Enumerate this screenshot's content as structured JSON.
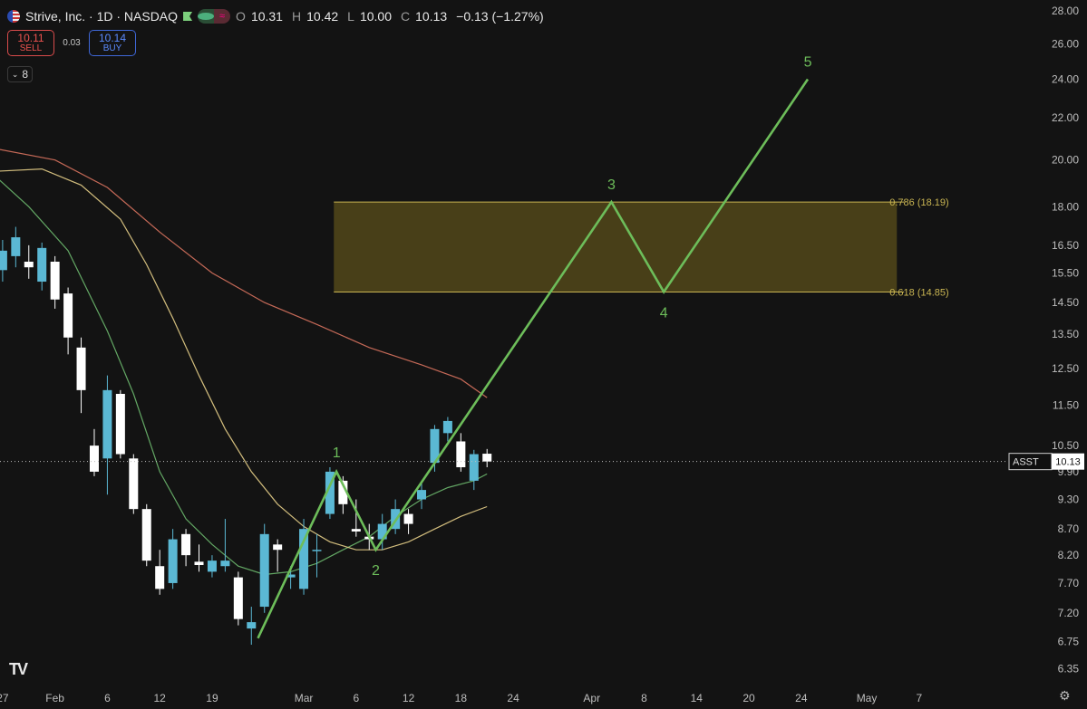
{
  "header": {
    "title": "Strive, Inc. · 1D · NASDAQ",
    "ohlc": [
      {
        "label": "O",
        "value": "10.31"
      },
      {
        "label": "H",
        "value": "10.42"
      },
      {
        "label": "L",
        "value": "10.00"
      },
      {
        "label": "C",
        "value": "10.13"
      }
    ],
    "change": "−0.13 (−1.27%)"
  },
  "trade": {
    "sell_price": "10.11",
    "sell_label": "SELL",
    "spread": "0.03",
    "buy_price": "10.14",
    "buy_label": "BUY"
  },
  "indicators_count": "8",
  "colors": {
    "up": "#5bb8d4",
    "down": "#ffffff",
    "wave": "#6dbd5a",
    "zone_fill": "#4b4118",
    "zone_border": "#c9b552",
    "ma_fast": "#6db86e",
    "ma_mid": "#e8d08a",
    "ma_slow": "#d9735f",
    "price_tag": "#ffffff"
  },
  "chart_data": {
    "type": "candlestick",
    "symbol": "ASST",
    "last_price": "10.13",
    "y_scale": "log",
    "ylim": [
      6.2,
      28.0
    ],
    "y_ticks": [
      "28.00",
      "26.00",
      "24.00",
      "22.00",
      "20.00",
      "18.00",
      "16.50",
      "15.50",
      "14.50",
      "13.50",
      "12.50",
      "11.50",
      "10.50",
      "9.90",
      "9.30",
      "8.70",
      "8.20",
      "7.70",
      "7.20",
      "6.75",
      "6.35"
    ],
    "x_ticks": [
      "27",
      "Feb",
      "6",
      "12",
      "19",
      "Mar",
      "6",
      "12",
      "18",
      "24",
      "Apr",
      "8",
      "14",
      "20",
      "24",
      "May",
      "7"
    ],
    "x_tick_slots": [
      0,
      4,
      8,
      12,
      16,
      23,
      27,
      31,
      35,
      39,
      45,
      49,
      53,
      57,
      61,
      66,
      70
    ],
    "xlim": [
      -0.2,
      76.8
    ],
    "candles": [
      {
        "x": 0,
        "o": 15.6,
        "h": 16.7,
        "l": 15.2,
        "c": 16.3
      },
      {
        "x": 1,
        "o": 16.1,
        "h": 17.2,
        "l": 15.7,
        "c": 16.8
      },
      {
        "x": 2,
        "o": 15.9,
        "h": 16.5,
        "l": 15.3,
        "c": 15.7
      },
      {
        "x": 3,
        "o": 15.2,
        "h": 16.6,
        "l": 14.9,
        "c": 16.4
      },
      {
        "x": 4,
        "o": 15.9,
        "h": 16.1,
        "l": 14.3,
        "c": 14.6
      },
      {
        "x": 5,
        "o": 14.8,
        "h": 15.0,
        "l": 12.9,
        "c": 13.4
      },
      {
        "x": 6,
        "o": 13.1,
        "h": 13.4,
        "l": 11.3,
        "c": 11.9
      },
      {
        "x": 7,
        "o": 10.5,
        "h": 10.9,
        "l": 9.8,
        "c": 9.9
      },
      {
        "x": 8,
        "o": 10.2,
        "h": 12.3,
        "l": 9.4,
        "c": 11.9
      },
      {
        "x": 9,
        "o": 11.8,
        "h": 11.9,
        "l": 10.2,
        "c": 10.3
      },
      {
        "x": 10,
        "o": 10.2,
        "h": 10.3,
        "l": 9.0,
        "c": 9.1
      },
      {
        "x": 11,
        "o": 9.1,
        "h": 9.2,
        "l": 8.0,
        "c": 8.1
      },
      {
        "x": 12,
        "o": 8.0,
        "h": 8.3,
        "l": 7.5,
        "c": 7.6
      },
      {
        "x": 13,
        "o": 7.7,
        "h": 8.7,
        "l": 7.6,
        "c": 8.5
      },
      {
        "x": 14,
        "o": 8.6,
        "h": 8.7,
        "l": 8.0,
        "c": 8.2
      },
      {
        "x": 15,
        "o": 8.08,
        "h": 8.4,
        "l": 7.9,
        "c": 8.02
      },
      {
        "x": 16,
        "o": 7.9,
        "h": 8.2,
        "l": 7.8,
        "c": 8.1
      },
      {
        "x": 17,
        "o": 8.0,
        "h": 8.9,
        "l": 7.9,
        "c": 8.1
      },
      {
        "x": 18,
        "o": 7.8,
        "h": 7.9,
        "l": 7.0,
        "c": 7.1
      },
      {
        "x": 19,
        "o": 6.95,
        "h": 7.3,
        "l": 6.7,
        "c": 7.05
      },
      {
        "x": 20,
        "o": 7.3,
        "h": 8.8,
        "l": 7.2,
        "c": 8.6
      },
      {
        "x": 21,
        "o": 8.4,
        "h": 8.5,
        "l": 7.9,
        "c": 8.3
      },
      {
        "x": 22,
        "o": 7.8,
        "h": 8.0,
        "l": 7.6,
        "c": 7.85
      },
      {
        "x": 23,
        "o": 7.6,
        "h": 8.9,
        "l": 7.5,
        "c": 8.7
      },
      {
        "x": 24,
        "o": 8.3,
        "h": 8.6,
        "l": 7.8,
        "c": 8.3
      },
      {
        "x": 25,
        "o": 9.0,
        "h": 10.0,
        "l": 8.9,
        "c": 9.9
      },
      {
        "x": 26,
        "o": 9.7,
        "h": 9.8,
        "l": 9.0,
        "c": 9.2
      },
      {
        "x": 27,
        "o": 8.7,
        "h": 9.3,
        "l": 8.55,
        "c": 8.65
      },
      {
        "x": 28,
        "o": 8.55,
        "h": 8.8,
        "l": 8.3,
        "c": 8.5
      },
      {
        "x": 29,
        "o": 8.5,
        "h": 9.0,
        "l": 8.3,
        "c": 8.8
      },
      {
        "x": 30,
        "o": 8.7,
        "h": 9.3,
        "l": 8.6,
        "c": 9.1
      },
      {
        "x": 31,
        "o": 9.0,
        "h": 9.1,
        "l": 8.6,
        "c": 8.8
      },
      {
        "x": 32,
        "o": 9.3,
        "h": 9.7,
        "l": 9.1,
        "c": 9.5
      },
      {
        "x": 33,
        "o": 10.1,
        "h": 11.0,
        "l": 9.9,
        "c": 10.9
      },
      {
        "x": 34,
        "o": 10.8,
        "h": 11.2,
        "l": 10.6,
        "c": 11.1
      },
      {
        "x": 35,
        "o": 10.6,
        "h": 10.8,
        "l": 9.9,
        "c": 10.0
      },
      {
        "x": 36,
        "o": 9.7,
        "h": 10.4,
        "l": 9.5,
        "c": 10.3
      },
      {
        "x": 37,
        "o": 10.31,
        "h": 10.42,
        "l": 10.0,
        "c": 10.13
      }
    ],
    "moving_averages": [
      {
        "name": "ma_fast",
        "points": [
          [
            -0.4,
            19.2
          ],
          [
            2,
            18.0
          ],
          [
            5,
            16.3
          ],
          [
            8,
            13.6
          ],
          [
            10,
            11.8
          ],
          [
            12,
            9.9
          ],
          [
            14,
            8.9
          ],
          [
            16,
            8.4
          ],
          [
            18,
            8.0
          ],
          [
            20,
            7.85
          ],
          [
            22,
            7.9
          ],
          [
            24,
            8.05
          ],
          [
            26,
            8.3
          ],
          [
            28,
            8.55
          ],
          [
            30,
            8.95
          ],
          [
            32,
            9.3
          ],
          [
            34,
            9.55
          ],
          [
            36,
            9.7
          ],
          [
            37,
            9.85
          ]
        ]
      },
      {
        "name": "ma_mid",
        "points": [
          [
            -0.4,
            19.5
          ],
          [
            3,
            19.6
          ],
          [
            6,
            18.9
          ],
          [
            9,
            17.5
          ],
          [
            11,
            15.8
          ],
          [
            13,
            14.0
          ],
          [
            15,
            12.3
          ],
          [
            17,
            10.9
          ],
          [
            19,
            9.9
          ],
          [
            21,
            9.2
          ],
          [
            23,
            8.75
          ],
          [
            25,
            8.45
          ],
          [
            27,
            8.3
          ],
          [
            29,
            8.3
          ],
          [
            31,
            8.45
          ],
          [
            33,
            8.7
          ],
          [
            35,
            8.95
          ],
          [
            37,
            9.15
          ]
        ]
      },
      {
        "name": "ma_slow",
        "points": [
          [
            -0.4,
            20.5
          ],
          [
            4,
            20.0
          ],
          [
            8,
            18.8
          ],
          [
            12,
            17.0
          ],
          [
            16,
            15.5
          ],
          [
            20,
            14.5
          ],
          [
            24,
            13.8
          ],
          [
            28,
            13.1
          ],
          [
            32,
            12.6
          ],
          [
            35,
            12.2
          ],
          [
            37,
            11.7
          ]
        ]
      }
    ],
    "fib_zone": {
      "x_start": 25.3,
      "x_end": 68.3,
      "upper": {
        "value": 18.19,
        "label": "0.786 (18.19)"
      },
      "lower": {
        "value": 14.85,
        "label": "0.618 (14.85)"
      }
    },
    "wave": {
      "points": [
        [
          19.5,
          6.8
        ],
        [
          25.5,
          9.9
        ],
        [
          28.5,
          8.3
        ],
        [
          46.5,
          18.19
        ],
        [
          50.5,
          14.85
        ],
        [
          61.5,
          24.0
        ]
      ],
      "labels": [
        "1",
        "2",
        "3",
        "4",
        "5"
      ]
    }
  }
}
